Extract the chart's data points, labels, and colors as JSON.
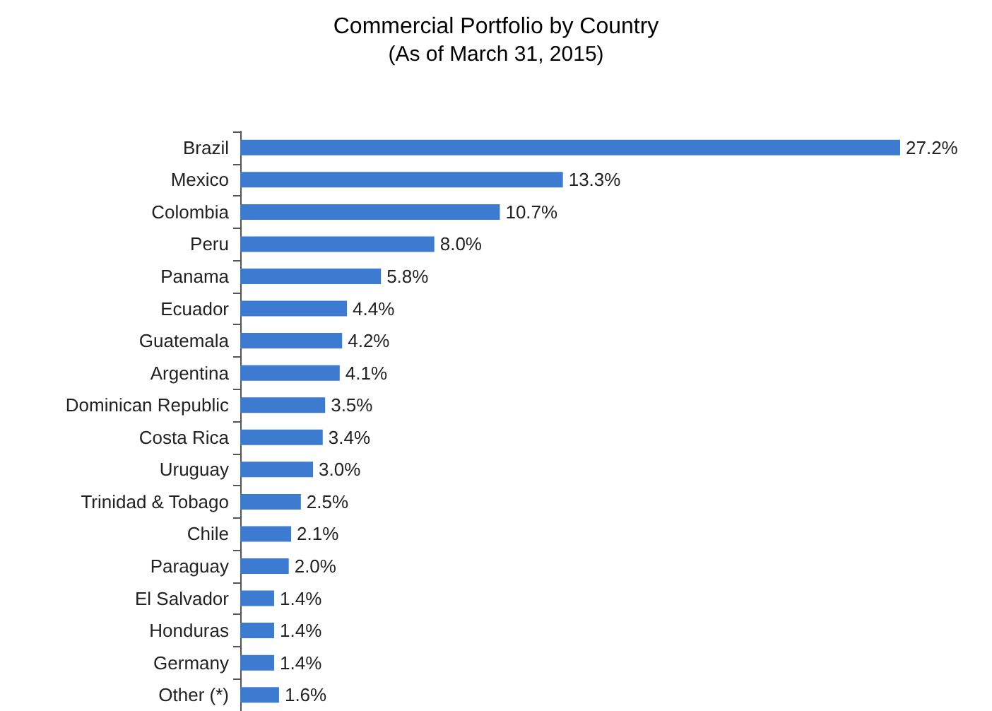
{
  "chart_data": {
    "type": "bar",
    "orientation": "horizontal",
    "title": "Commercial Portfolio by Country",
    "subtitle": "(As of March 31, 2015)",
    "categories": [
      "Brazil",
      "Mexico",
      "Colombia",
      "Peru",
      "Panama",
      "Ecuador",
      "Guatemala",
      "Argentina",
      "Dominican Republic",
      "Costa Rica",
      "Uruguay",
      "Trinidad & Tobago",
      "Chile",
      "Paraguay",
      "El Salvador",
      "Honduras",
      "Germany",
      "Other (*)"
    ],
    "values": [
      27.2,
      13.3,
      10.7,
      8.0,
      5.8,
      4.4,
      4.2,
      4.1,
      3.5,
      3.4,
      3.0,
      2.5,
      2.1,
      2.0,
      1.4,
      1.4,
      1.4,
      1.6
    ],
    "value_labels": [
      "27.2%",
      "13.3%",
      "10.7%",
      "8.0%",
      "5.8%",
      "4.4%",
      "4.2%",
      "4.1%",
      "3.5%",
      "3.4%",
      "3.0%",
      "2.5%",
      "2.1%",
      "2.0%",
      "1.4%",
      "1.4%",
      "1.4%",
      "1.6%"
    ],
    "color": "#3d7bd0"
  }
}
